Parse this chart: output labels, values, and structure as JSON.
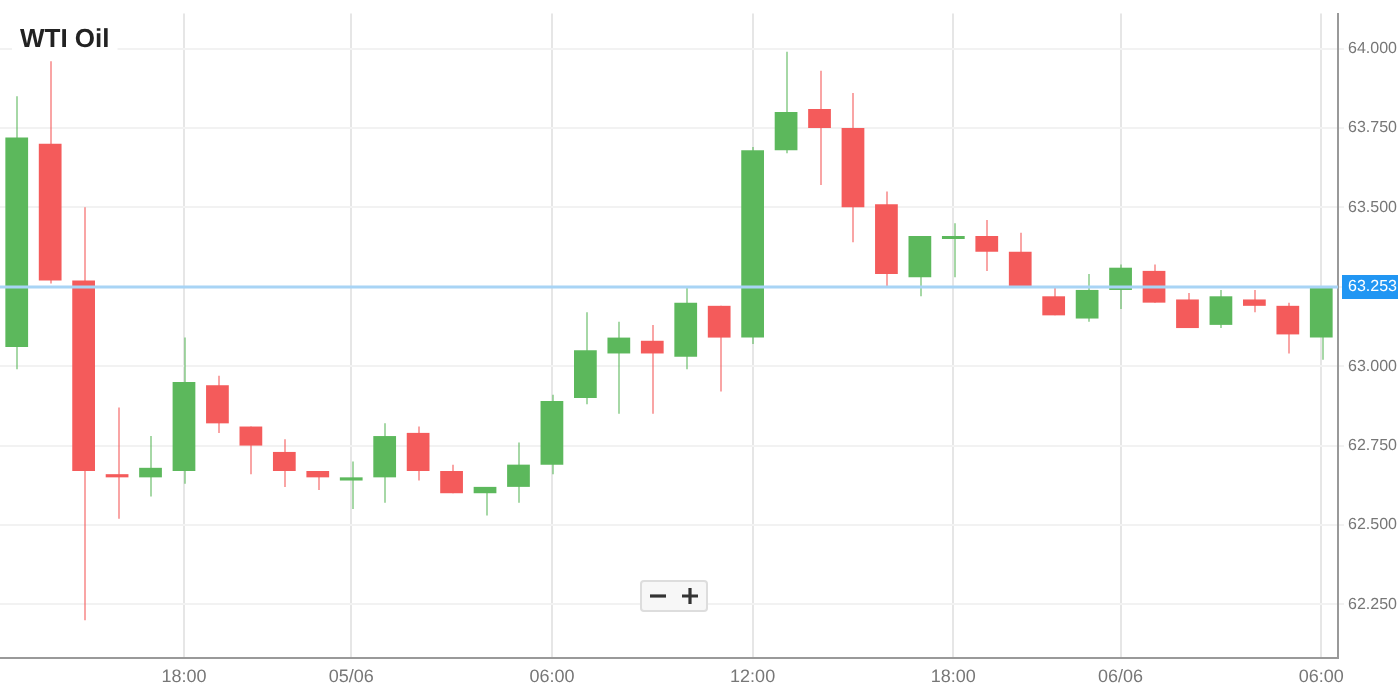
{
  "chart_data": {
    "type": "candlestick",
    "title": "WTI Oil",
    "categories": [
      null,
      null,
      null,
      null,
      null,
      "18:00",
      null,
      null,
      null,
      null,
      "05/06",
      null,
      null,
      null,
      null,
      null,
      "06:00",
      null,
      null,
      null,
      null,
      null,
      "12:00",
      null,
      null,
      null,
      null,
      null,
      "18:00",
      null,
      null,
      null,
      null,
      "06/06",
      null,
      null,
      null,
      null,
      null,
      "06:00"
    ],
    "ohlc": [
      [
        63.06,
        63.85,
        62.99,
        63.72
      ],
      [
        63.7,
        63.96,
        63.26,
        63.27
      ],
      [
        63.27,
        63.5,
        62.2,
        62.67
      ],
      [
        62.66,
        62.87,
        62.52,
        62.65
      ],
      [
        62.65,
        62.78,
        62.59,
        62.68
      ],
      [
        62.67,
        63.09,
        62.63,
        62.95
      ],
      [
        62.94,
        62.97,
        62.79,
        62.82
      ],
      [
        62.81,
        62.81,
        62.66,
        62.75
      ],
      [
        62.73,
        62.77,
        62.62,
        62.67
      ],
      [
        62.67,
        62.67,
        62.61,
        62.65
      ],
      [
        62.64,
        62.7,
        62.55,
        62.65
      ],
      [
        62.65,
        62.82,
        62.57,
        62.78
      ],
      [
        62.79,
        62.81,
        62.64,
        62.67
      ],
      [
        62.67,
        62.69,
        62.6,
        62.6
      ],
      [
        62.6,
        62.62,
        62.53,
        62.62
      ],
      [
        62.62,
        62.76,
        62.57,
        62.69
      ],
      [
        62.69,
        62.91,
        62.66,
        62.89
      ],
      [
        62.9,
        63.17,
        62.88,
        63.05
      ],
      [
        63.04,
        63.14,
        62.85,
        63.09
      ],
      [
        63.08,
        63.13,
        62.85,
        63.04
      ],
      [
        63.03,
        63.25,
        62.99,
        63.2
      ],
      [
        63.19,
        63.19,
        62.92,
        63.09
      ],
      [
        63.09,
        63.69,
        63.07,
        63.68
      ],
      [
        63.68,
        63.99,
        63.67,
        63.8
      ],
      [
        63.81,
        63.93,
        63.57,
        63.75
      ],
      [
        63.75,
        63.86,
        63.39,
        63.5
      ],
      [
        63.51,
        63.55,
        63.25,
        63.29
      ],
      [
        63.28,
        63.41,
        63.22,
        63.41
      ],
      [
        63.4,
        63.45,
        63.28,
        63.41
      ],
      [
        63.41,
        63.46,
        63.3,
        63.36
      ],
      [
        63.36,
        63.42,
        63.25,
        63.25
      ],
      [
        63.22,
        63.25,
        63.16,
        63.16
      ],
      [
        63.15,
        63.29,
        63.14,
        63.24
      ],
      [
        63.24,
        63.32,
        63.18,
        63.31
      ],
      [
        63.3,
        63.32,
        63.2,
        63.2
      ],
      [
        63.21,
        63.23,
        63.12,
        63.12
      ],
      [
        63.13,
        63.24,
        63.12,
        63.22
      ],
      [
        63.21,
        63.24,
        63.17,
        63.19
      ],
      [
        63.19,
        63.2,
        63.04,
        63.1
      ],
      [
        63.09,
        63.25,
        63.02,
        63.25
      ]
    ],
    "colors": [
      "#5cb85c",
      "#f45b5b",
      "#f45b5b",
      "#f45b5b",
      "#5cb85c",
      "#5cb85c",
      "#f45b5b",
      "#f45b5b",
      "#f45b5b",
      "#f45b5b",
      "#5cb85c",
      "#5cb85c",
      "#f45b5b",
      "#f45b5b",
      "#5cb85c",
      "#5cb85c",
      "#5cb85c",
      "#5cb85c",
      "#5cb85c",
      "#f45b5b",
      "#5cb85c",
      "#f45b5b",
      "#5cb85c",
      "#5cb85c",
      "#f45b5b",
      "#f45b5b",
      "#f45b5b",
      "#5cb85c",
      "#5cb85c",
      "#f45b5b",
      "#f45b5b",
      "#f45b5b",
      "#5cb85c",
      "#5cb85c",
      "#f45b5b",
      "#f45b5b",
      "#5cb85c",
      "#f45b5b",
      "#f45b5b",
      "#5cb85c"
    ],
    "ylim": [
      62.08,
      64.11
    ],
    "yticks": [
      {
        "value": 62.25,
        "label": "62.250"
      },
      {
        "value": 62.5,
        "label": "62.500"
      },
      {
        "value": 62.75,
        "label": "62.750"
      },
      {
        "value": 63,
        "label": "63.000"
      },
      {
        "value": 63.25,
        "label": null
      },
      {
        "value": 63.5,
        "label": "63.500"
      },
      {
        "value": 63.75,
        "label": "63.750"
      },
      {
        "value": 64,
        "label": "64.000"
      }
    ],
    "ref_lines": [
      {
        "axis": "y",
        "value": 63.253,
        "label": "63.253",
        "color": "#a8d4f5"
      }
    ],
    "grid": true,
    "legend": false
  }
}
